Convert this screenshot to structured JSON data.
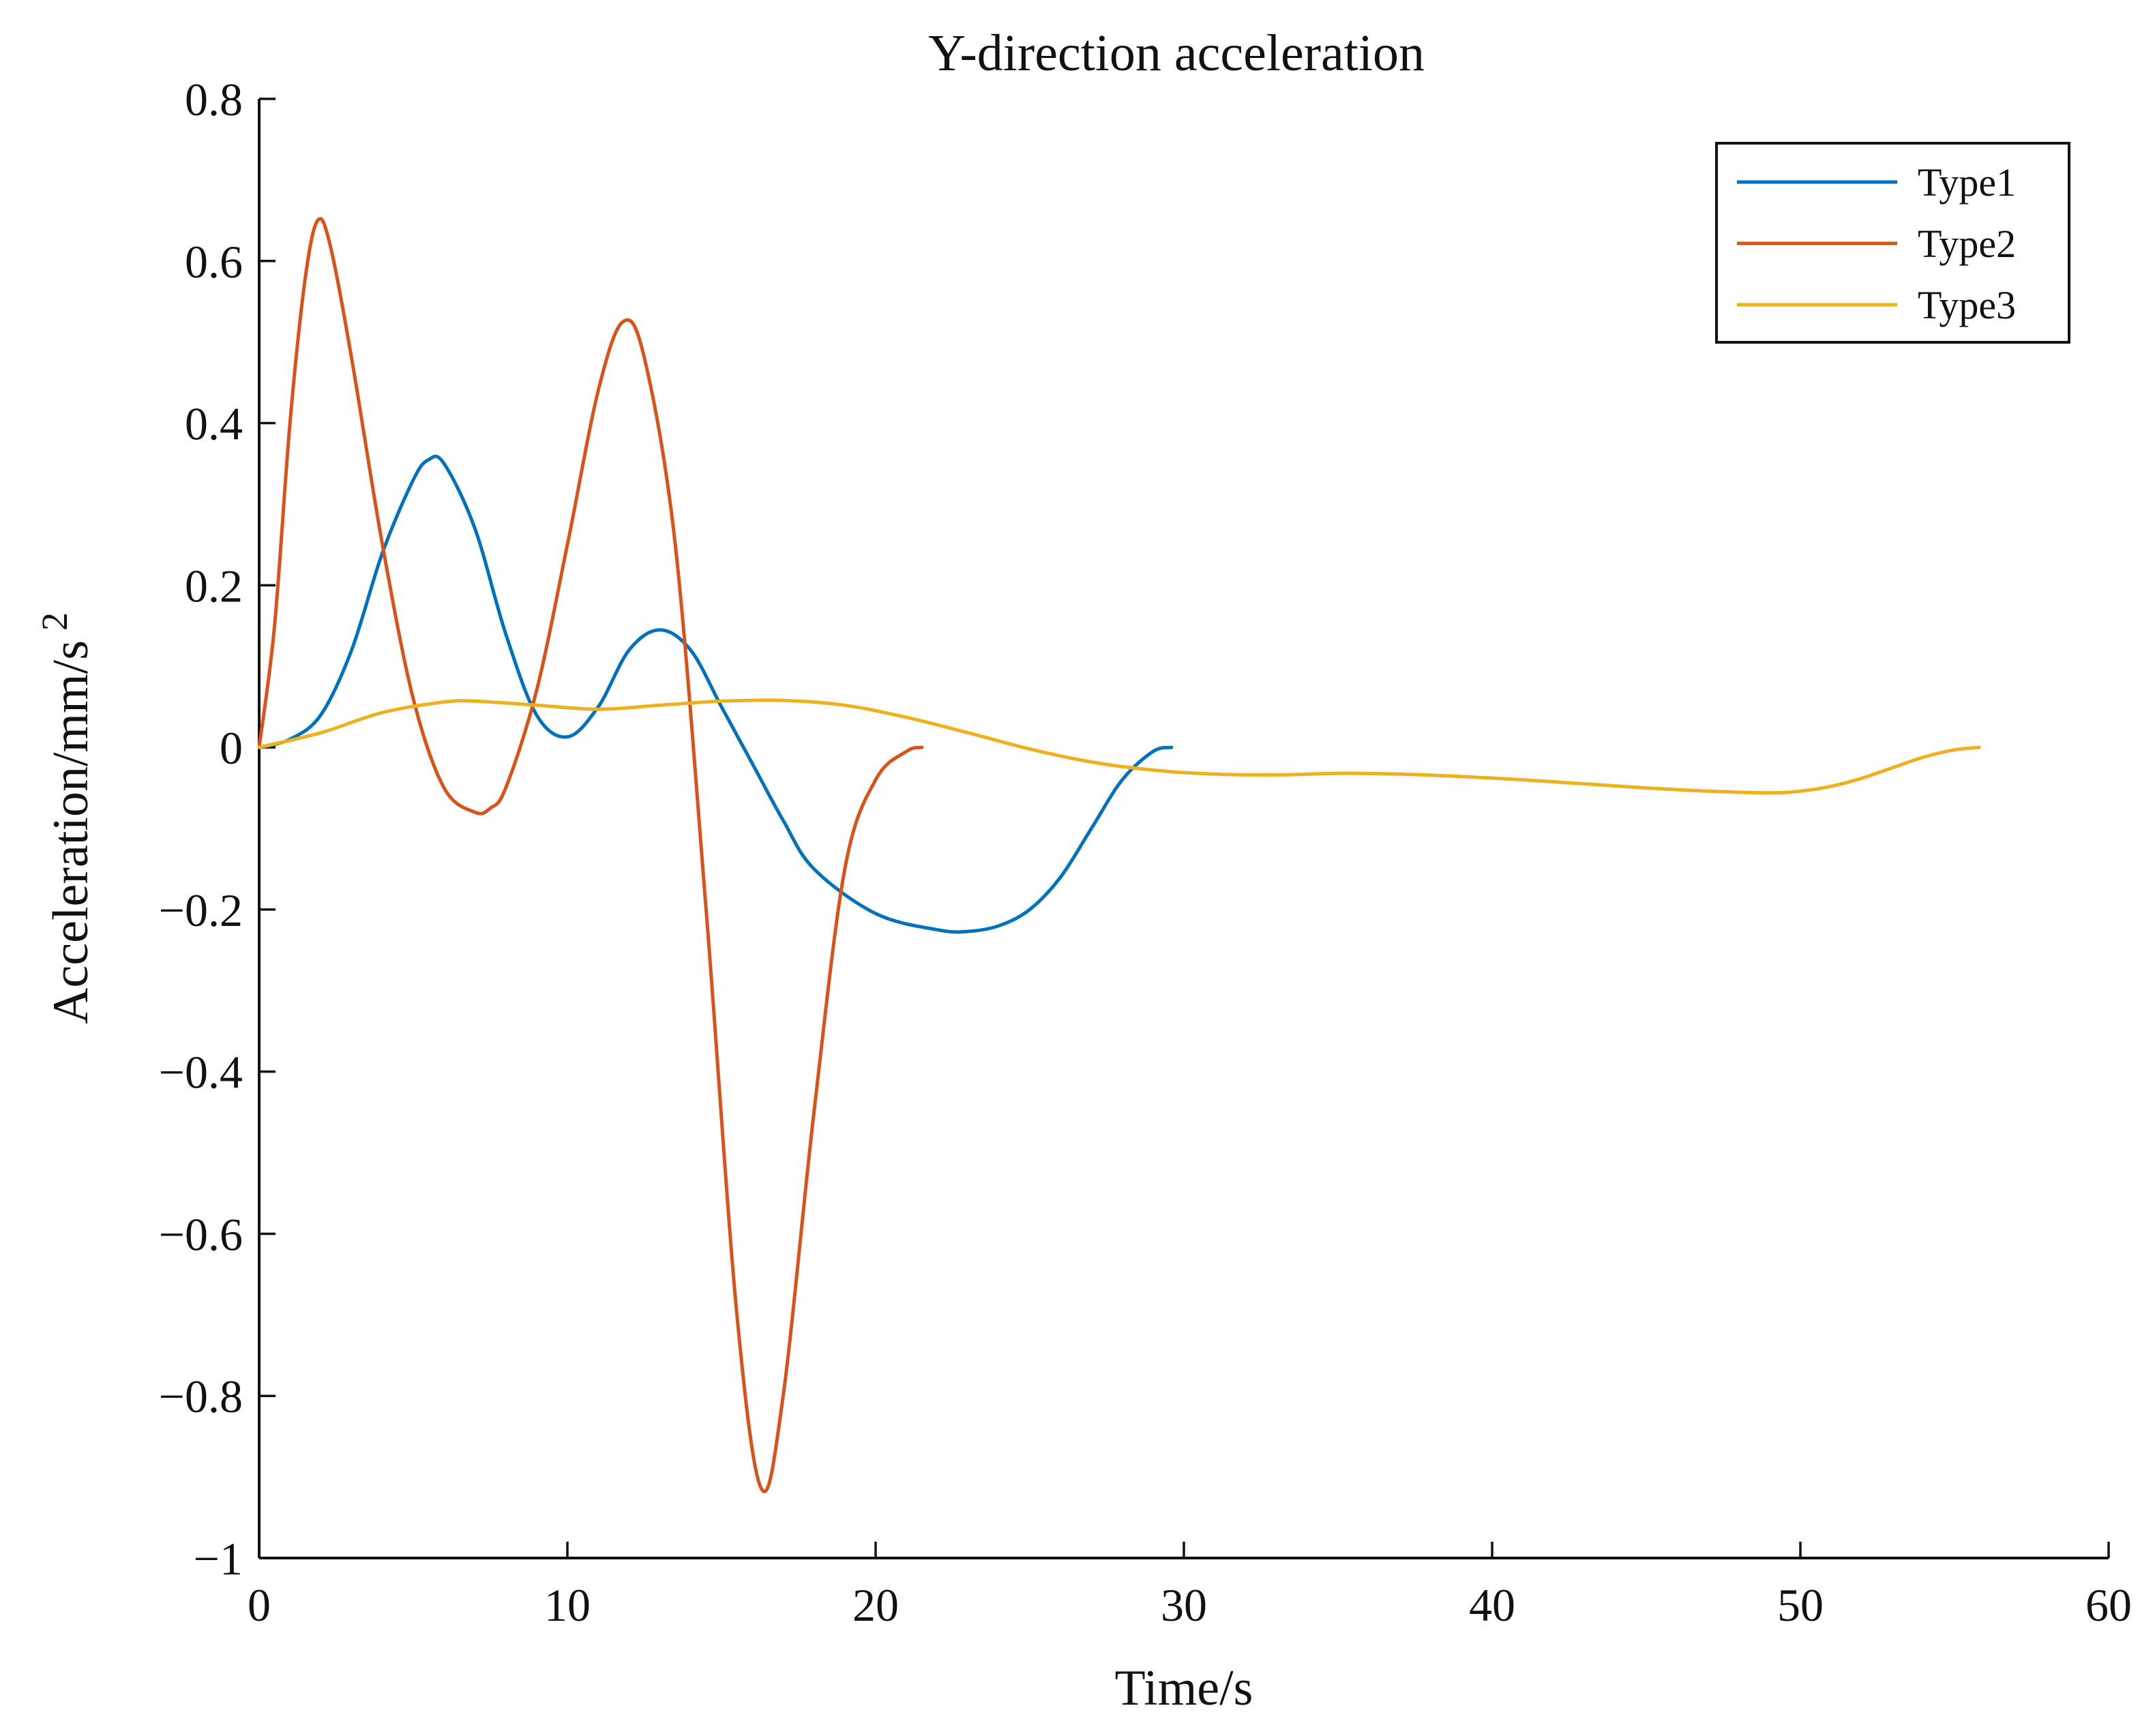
{
  "chart_data": {
    "type": "line",
    "title": "Y-direction acceleration",
    "xlabel": "Time/s",
    "ylabel": "Acceleration/mm/s",
    "ylabel_superscript": "2",
    "xlim": [
      0,
      60
    ],
    "ylim": [
      -1,
      0.8
    ],
    "xticks": [
      0,
      10,
      20,
      30,
      40,
      50,
      60
    ],
    "xtick_labels": [
      "0",
      "10",
      "20",
      "30",
      "40",
      "50",
      "60"
    ],
    "yticks": [
      -1,
      -0.8,
      -0.6,
      -0.4,
      -0.2,
      0,
      0.2,
      0.4,
      0.6,
      0.8
    ],
    "ytick_labels": [
      "−1",
      "−0.8",
      "−0.6",
      "−0.4",
      "−0.2",
      "0",
      "0.2",
      "0.4",
      "0.6",
      "0.8"
    ],
    "grid": false,
    "legend_position": "top-right",
    "series": [
      {
        "name": "Type1",
        "color": "#0072BD",
        "points": [
          [
            0,
            0
          ],
          [
            1,
            0.01
          ],
          [
            2,
            0.04
          ],
          [
            3,
            0.12
          ],
          [
            4,
            0.24
          ],
          [
            5,
            0.33
          ],
          [
            5.5,
            0.355
          ],
          [
            6,
            0.35
          ],
          [
            7,
            0.27
          ],
          [
            8,
            0.14
          ],
          [
            9,
            0.04
          ],
          [
            10,
            0.013
          ],
          [
            11,
            0.05
          ],
          [
            12,
            0.12
          ],
          [
            13,
            0.145
          ],
          [
            14,
            0.12
          ],
          [
            15,
            0.05
          ],
          [
            16,
            -0.02
          ],
          [
            17,
            -0.09
          ],
          [
            18,
            -0.15
          ],
          [
            20,
            -0.205
          ],
          [
            22,
            -0.225
          ],
          [
            23,
            -0.227
          ],
          [
            24,
            -0.22
          ],
          [
            25,
            -0.2
          ],
          [
            26,
            -0.16
          ],
          [
            27,
            -0.1
          ],
          [
            28,
            -0.04
          ],
          [
            29,
            -0.005
          ],
          [
            29.6,
            0
          ]
        ]
      },
      {
        "name": "Type2",
        "color": "#D95319",
        "points": [
          [
            0,
            0
          ],
          [
            0.5,
            0.15
          ],
          [
            1,
            0.4
          ],
          [
            1.5,
            0.58
          ],
          [
            1.9,
            0.65
          ],
          [
            2.3,
            0.62
          ],
          [
            3,
            0.48
          ],
          [
            4,
            0.25
          ],
          [
            5,
            0.06
          ],
          [
            6,
            -0.05
          ],
          [
            7,
            -0.08
          ],
          [
            7.5,
            -0.075
          ],
          [
            8,
            -0.05
          ],
          [
            9,
            0.07
          ],
          [
            10,
            0.25
          ],
          [
            11,
            0.44
          ],
          [
            11.8,
            0.525
          ],
          [
            12.5,
            0.48
          ],
          [
            13.5,
            0.25
          ],
          [
            14.5,
            -0.2
          ],
          [
            15.5,
            -0.7
          ],
          [
            16.3,
            -0.915
          ],
          [
            17,
            -0.8
          ],
          [
            18,
            -0.45
          ],
          [
            19,
            -0.15
          ],
          [
            20,
            -0.04
          ],
          [
            21,
            -0.005
          ],
          [
            21.5,
            0
          ]
        ]
      },
      {
        "name": "Type3",
        "color": "#EDB120",
        "points": [
          [
            0,
            0
          ],
          [
            2,
            0.018
          ],
          [
            4,
            0.043
          ],
          [
            6,
            0.056
          ],
          [
            7,
            0.057
          ],
          [
            9,
            0.052
          ],
          [
            11,
            0.047
          ],
          [
            13,
            0.052
          ],
          [
            15,
            0.057
          ],
          [
            17,
            0.058
          ],
          [
            19,
            0.052
          ],
          [
            21,
            0.037
          ],
          [
            23,
            0.018
          ],
          [
            25,
            -0.002
          ],
          [
            27,
            -0.018
          ],
          [
            29,
            -0.028
          ],
          [
            31,
            -0.033
          ],
          [
            33,
            -0.034
          ],
          [
            35,
            -0.032
          ],
          [
            37,
            -0.033
          ],
          [
            39,
            -0.036
          ],
          [
            41,
            -0.04
          ],
          [
            43,
            -0.045
          ],
          [
            45,
            -0.05
          ],
          [
            47,
            -0.054
          ],
          [
            49,
            -0.056
          ],
          [
            50,
            -0.054
          ],
          [
            51,
            -0.048
          ],
          [
            52,
            -0.038
          ],
          [
            53,
            -0.025
          ],
          [
            54,
            -0.012
          ],
          [
            55,
            -0.003
          ],
          [
            55.8,
            0
          ]
        ]
      }
    ]
  }
}
